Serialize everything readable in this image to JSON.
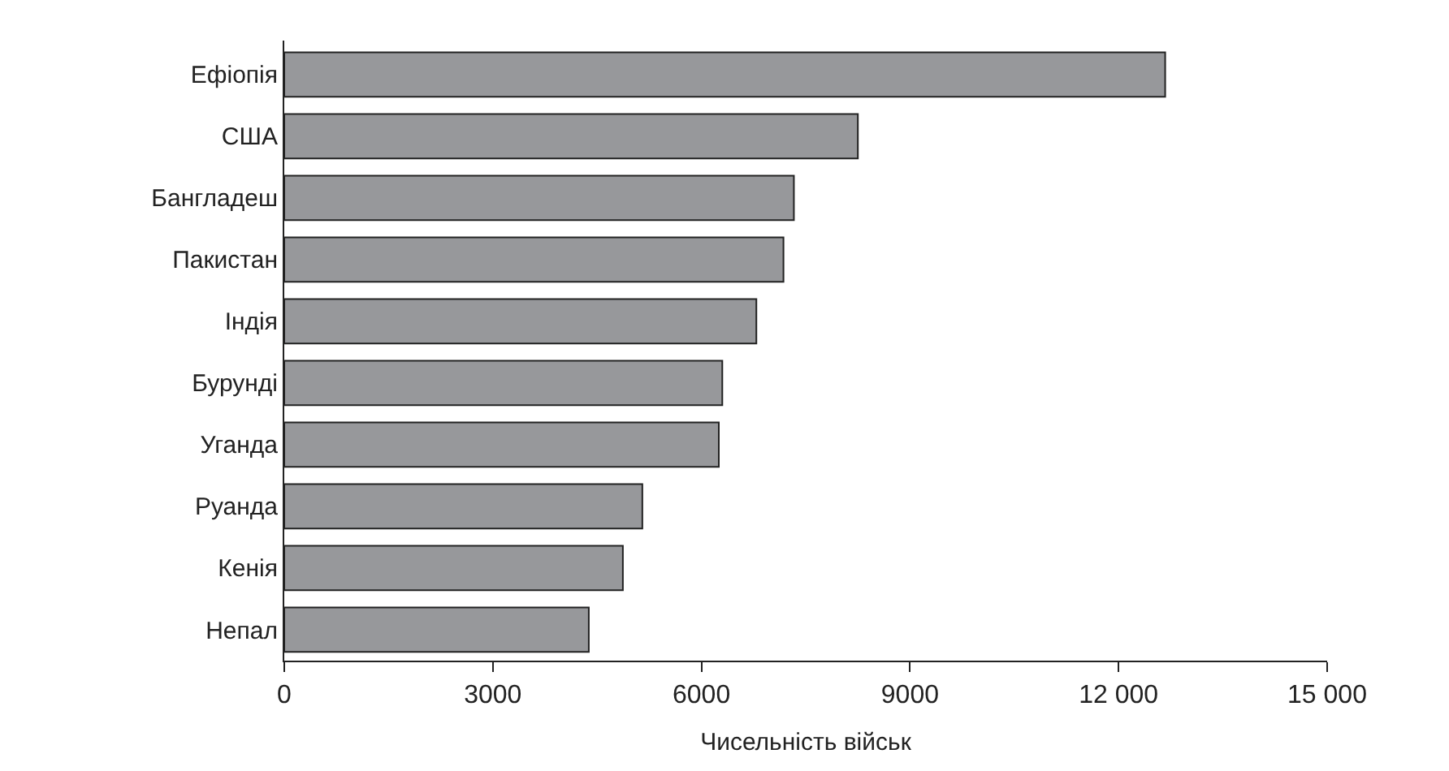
{
  "chart_data": {
    "type": "bar",
    "orientation": "horizontal",
    "xlabel": "Чисельність військ",
    "categories": [
      "Ефіопія",
      "США",
      "Бангладеш",
      "Пакистан",
      "Індія",
      "Бурунді",
      "Уганда",
      "Руанда",
      "Кенія",
      "Непал"
    ],
    "values": [
      12670,
      8250,
      7330,
      7180,
      6790,
      6300,
      6250,
      5150,
      4870,
      4380
    ],
    "color": "#97989b",
    "xlim": [
      0,
      15000
    ],
    "xticks": [
      0,
      3000,
      6000,
      9000,
      {
        "value": 12000,
        "label": "12 000"
      },
      {
        "value": 15000,
        "label": "15 000"
      }
    ],
    "legend": false
  }
}
